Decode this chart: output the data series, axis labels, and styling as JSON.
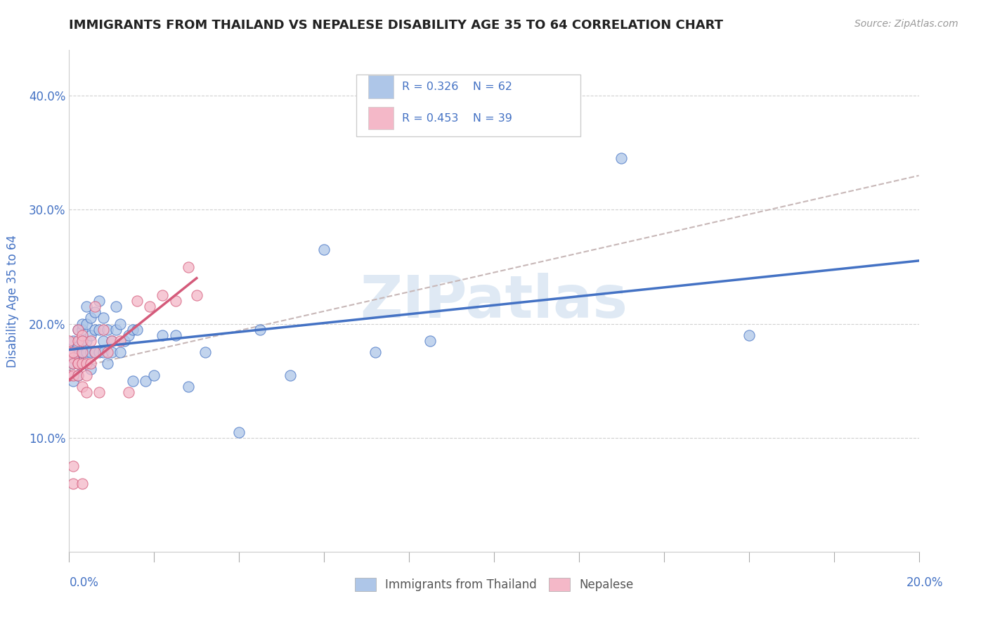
{
  "title": "IMMIGRANTS FROM THAILAND VS NEPALESE DISABILITY AGE 35 TO 64 CORRELATION CHART",
  "source_text": "Source: ZipAtlas.com",
  "ylabel": "Disability Age 35 to 64",
  "xlim": [
    0.0,
    0.2
  ],
  "ylim": [
    0.0,
    0.44
  ],
  "yticks": [
    0.1,
    0.2,
    0.3,
    0.4
  ],
  "ytick_labels": [
    "10.0%",
    "20.0%",
    "30.0%",
    "40.0%"
  ],
  "r_thailand": 0.326,
  "n_thailand": 62,
  "r_nepalese": 0.453,
  "n_nepalese": 39,
  "color_thailand": "#aec6e8",
  "color_nepalese": "#f4b8c8",
  "color_line_thailand": "#4472c4",
  "color_line_nepalese": "#d45a7a",
  "color_dashed": "#c8b8b8",
  "legend_label_thailand": "Immigrants from Thailand",
  "legend_label_nepalese": "Nepalese",
  "watermark": "ZIPatlas",
  "background_color": "#ffffff",
  "title_color": "#222222",
  "axis_label_color": "#4472c4",
  "thailand_x": [
    0.0,
    0.001,
    0.001,
    0.001,
    0.001,
    0.001,
    0.002,
    0.002,
    0.002,
    0.002,
    0.002,
    0.002,
    0.003,
    0.003,
    0.003,
    0.003,
    0.003,
    0.003,
    0.004,
    0.004,
    0.004,
    0.004,
    0.005,
    0.005,
    0.005,
    0.005,
    0.006,
    0.006,
    0.006,
    0.007,
    0.007,
    0.007,
    0.008,
    0.008,
    0.008,
    0.009,
    0.009,
    0.01,
    0.01,
    0.011,
    0.011,
    0.012,
    0.012,
    0.013,
    0.014,
    0.015,
    0.015,
    0.016,
    0.018,
    0.02,
    0.022,
    0.025,
    0.028,
    0.032,
    0.04,
    0.045,
    0.052,
    0.06,
    0.072,
    0.085,
    0.13,
    0.16
  ],
  "thailand_y": [
    0.155,
    0.17,
    0.15,
    0.185,
    0.175,
    0.165,
    0.155,
    0.165,
    0.175,
    0.18,
    0.195,
    0.175,
    0.165,
    0.175,
    0.195,
    0.2,
    0.185,
    0.165,
    0.175,
    0.185,
    0.2,
    0.215,
    0.175,
    0.19,
    0.16,
    0.205,
    0.195,
    0.175,
    0.21,
    0.195,
    0.175,
    0.22,
    0.185,
    0.205,
    0.175,
    0.195,
    0.165,
    0.175,
    0.185,
    0.195,
    0.215,
    0.2,
    0.175,
    0.185,
    0.19,
    0.195,
    0.15,
    0.195,
    0.15,
    0.155,
    0.19,
    0.19,
    0.145,
    0.175,
    0.105,
    0.195,
    0.155,
    0.265,
    0.175,
    0.185,
    0.345,
    0.19
  ],
  "nepalese_x": [
    0.0,
    0.0,
    0.0,
    0.001,
    0.001,
    0.001,
    0.001,
    0.001,
    0.001,
    0.002,
    0.002,
    0.002,
    0.002,
    0.002,
    0.003,
    0.003,
    0.003,
    0.003,
    0.003,
    0.003,
    0.004,
    0.004,
    0.004,
    0.005,
    0.005,
    0.006,
    0.006,
    0.007,
    0.008,
    0.009,
    0.01,
    0.012,
    0.014,
    0.016,
    0.019,
    0.022,
    0.025,
    0.028,
    0.03
  ],
  "nepalese_y": [
    0.155,
    0.175,
    0.185,
    0.17,
    0.155,
    0.175,
    0.165,
    0.06,
    0.075,
    0.165,
    0.185,
    0.195,
    0.155,
    0.165,
    0.165,
    0.175,
    0.19,
    0.145,
    0.185,
    0.06,
    0.155,
    0.165,
    0.14,
    0.165,
    0.185,
    0.175,
    0.215,
    0.14,
    0.195,
    0.175,
    0.185,
    0.185,
    0.14,
    0.22,
    0.215,
    0.225,
    0.22,
    0.25,
    0.225
  ]
}
